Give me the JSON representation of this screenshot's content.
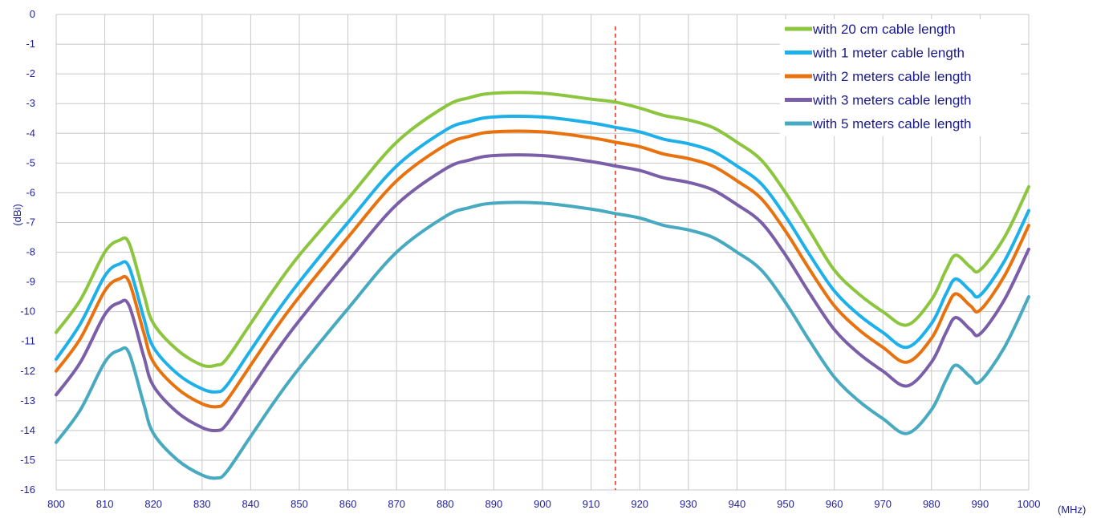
{
  "chart_data": {
    "type": "line",
    "title": "",
    "xlabel": "(MHz)",
    "ylabel": "(dBi)",
    "xlim": [
      800,
      1000
    ],
    "ylim": [
      -16,
      0
    ],
    "xticks": [
      800,
      810,
      820,
      830,
      840,
      850,
      860,
      870,
      880,
      890,
      900,
      910,
      920,
      930,
      940,
      950,
      960,
      970,
      980,
      990,
      1000
    ],
    "yticks": [
      0,
      -1,
      -2,
      -3,
      -4,
      -5,
      -6,
      -7,
      -8,
      -9,
      -10,
      -11,
      -12,
      -13,
      -14,
      -15,
      -16
    ],
    "grid": true,
    "legend_position": "top-right",
    "reference_line": {
      "x": 915,
      "color": "#e0301e",
      "style": "dashed"
    },
    "x": [
      800,
      805,
      810,
      813,
      815,
      818,
      820,
      825,
      830,
      833,
      835,
      840,
      845,
      850,
      860,
      870,
      880,
      885,
      890,
      900,
      910,
      915,
      920,
      925,
      930,
      935,
      940,
      945,
      950,
      955,
      960,
      965,
      970,
      975,
      980,
      983,
      985,
      988,
      990,
      995,
      1000
    ],
    "series": [
      {
        "name": "with 20 cm cable length",
        "color": "#8cc63f",
        "values": [
          -10.7,
          -9.6,
          -8.0,
          -7.6,
          -7.7,
          -9.4,
          -10.4,
          -11.3,
          -11.8,
          -11.8,
          -11.6,
          -10.4,
          -9.2,
          -8.1,
          -6.2,
          -4.3,
          -3.1,
          -2.8,
          -2.65,
          -2.65,
          -2.85,
          -2.95,
          -3.15,
          -3.4,
          -3.55,
          -3.8,
          -4.3,
          -4.9,
          -6.0,
          -7.3,
          -8.6,
          -9.4,
          -10.0,
          -10.45,
          -9.6,
          -8.6,
          -8.1,
          -8.5,
          -8.6,
          -7.5,
          -5.8
        ]
      },
      {
        "name": "with 1 meter cable length",
        "color": "#1eb0e8",
        "values": [
          -11.6,
          -10.4,
          -8.8,
          -8.4,
          -8.5,
          -10.2,
          -11.2,
          -12.1,
          -12.6,
          -12.7,
          -12.5,
          -11.3,
          -10.1,
          -9.0,
          -7.0,
          -5.1,
          -3.9,
          -3.6,
          -3.45,
          -3.45,
          -3.65,
          -3.8,
          -3.95,
          -4.2,
          -4.35,
          -4.6,
          -5.1,
          -5.7,
          -6.8,
          -8.1,
          -9.3,
          -10.1,
          -10.7,
          -11.2,
          -10.4,
          -9.4,
          -8.9,
          -9.3,
          -9.45,
          -8.3,
          -6.6
        ]
      },
      {
        "name": "with 2 meters cable length",
        "color": "#e8720e",
        "values": [
          -12.0,
          -10.9,
          -9.3,
          -8.9,
          -9.0,
          -10.7,
          -11.7,
          -12.6,
          -13.1,
          -13.2,
          -13.0,
          -11.8,
          -10.6,
          -9.5,
          -7.5,
          -5.6,
          -4.4,
          -4.1,
          -3.95,
          -3.95,
          -4.15,
          -4.3,
          -4.45,
          -4.7,
          -4.85,
          -5.1,
          -5.6,
          -6.2,
          -7.3,
          -8.6,
          -9.8,
          -10.6,
          -11.2,
          -11.7,
          -10.9,
          -9.9,
          -9.4,
          -9.8,
          -9.95,
          -8.8,
          -7.1
        ]
      },
      {
        "name": "with 3 meters cable length",
        "color": "#7b5ea8",
        "values": [
          -12.8,
          -11.7,
          -10.1,
          -9.7,
          -9.8,
          -11.5,
          -12.5,
          -13.4,
          -13.9,
          -14.0,
          -13.8,
          -12.6,
          -11.4,
          -10.3,
          -8.3,
          -6.4,
          -5.2,
          -4.9,
          -4.75,
          -4.75,
          -4.95,
          -5.1,
          -5.25,
          -5.5,
          -5.65,
          -5.9,
          -6.4,
          -7.0,
          -8.1,
          -9.4,
          -10.6,
          -11.4,
          -12.0,
          -12.5,
          -11.7,
          -10.7,
          -10.2,
          -10.6,
          -10.75,
          -9.6,
          -7.9
        ]
      },
      {
        "name": "with 5 meters cable length",
        "color": "#47aac0",
        "values": [
          -14.4,
          -13.3,
          -11.7,
          -11.3,
          -11.4,
          -13.1,
          -14.1,
          -15.0,
          -15.5,
          -15.6,
          -15.4,
          -14.2,
          -13.0,
          -11.9,
          -9.9,
          -8.0,
          -6.8,
          -6.5,
          -6.35,
          -6.35,
          -6.55,
          -6.7,
          -6.85,
          -7.1,
          -7.25,
          -7.5,
          -8.0,
          -8.6,
          -9.7,
          -11.0,
          -12.2,
          -13.0,
          -13.6,
          -14.1,
          -13.3,
          -12.3,
          -11.8,
          -12.2,
          -12.35,
          -11.2,
          -9.5
        ]
      }
    ]
  }
}
